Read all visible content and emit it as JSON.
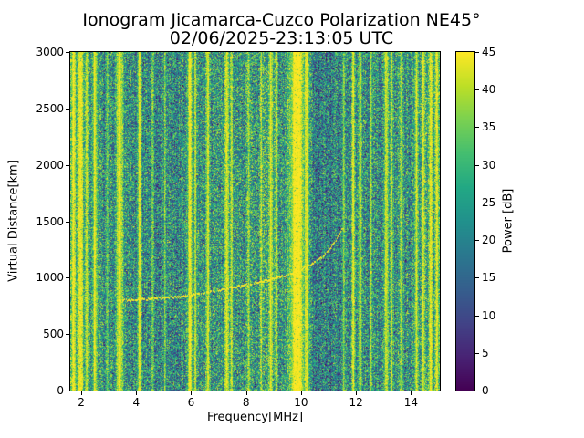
{
  "chart_data": {
    "type": "heatmap",
    "title": "Ionogram Jicamarca-Cuzco Polarization NE45°",
    "subtitle": "02/06/2025-23:13:05 UTC",
    "xlabel": "Frequency[MHz]",
    "ylabel": "Virtual Distance[km]",
    "xlim": [
      1.6,
      15.05
    ],
    "ylim": [
      0,
      3000
    ],
    "xticks": [
      2,
      4,
      6,
      8,
      10,
      12,
      14
    ],
    "yticks": [
      0,
      500,
      1000,
      1500,
      2000,
      2500,
      3000
    ],
    "colorbar": {
      "label": "Power [dB]",
      "min": 0,
      "max": 45,
      "ticks": [
        0,
        5,
        10,
        15,
        20,
        25,
        30,
        35,
        40,
        45
      ],
      "colormap": "viridis"
    },
    "background_power_db": {
      "mean": 23,
      "spread": 16
    },
    "background_fields": [
      {
        "freq": 8.3,
        "sigma": 1.3,
        "amp": 2.5
      },
      {
        "freq": 10.9,
        "sigma": 0.55,
        "amp": -4
      },
      {
        "freq": 4.9,
        "sigma": 0.8,
        "amp": -1.5
      },
      {
        "freq": 14.6,
        "sigma": 0.8,
        "amp": 2
      },
      {
        "freq": 1.9,
        "sigma": 0.4,
        "amp": 2
      }
    ],
    "rfi_stripes": [
      {
        "freq": 1.72,
        "sigma": 0.06,
        "power": 45
      },
      {
        "freq": 1.97,
        "sigma": 0.08,
        "power": 45
      },
      {
        "freq": 2.2,
        "sigma": 0.04,
        "power": 42
      },
      {
        "freq": 2.5,
        "sigma": 0.06,
        "power": 45
      },
      {
        "freq": 2.95,
        "sigma": 0.03,
        "power": 38
      },
      {
        "freq": 3.4,
        "sigma": 0.09,
        "power": 45
      },
      {
        "freq": 4.12,
        "sigma": 0.05,
        "power": 43
      },
      {
        "freq": 4.6,
        "sigma": 0.03,
        "power": 37
      },
      {
        "freq": 5.05,
        "sigma": 0.03,
        "power": 38
      },
      {
        "freq": 5.95,
        "sigma": 0.06,
        "power": 44
      },
      {
        "freq": 6.15,
        "sigma": 0.03,
        "power": 41
      },
      {
        "freq": 6.6,
        "sigma": 0.04,
        "power": 44
      },
      {
        "freq": 7.3,
        "sigma": 0.05,
        "power": 45
      },
      {
        "freq": 7.47,
        "sigma": 0.03,
        "power": 42
      },
      {
        "freq": 8.1,
        "sigma": 0.03,
        "power": 38
      },
      {
        "freq": 8.55,
        "sigma": 0.03,
        "power": 37
      },
      {
        "freq": 8.9,
        "sigma": 0.05,
        "power": 43
      },
      {
        "freq": 9.1,
        "sigma": 0.03,
        "power": 40
      },
      {
        "freq": 9.85,
        "sigma": 0.2,
        "power": 46
      },
      {
        "freq": 10.2,
        "sigma": 0.07,
        "power": 44
      },
      {
        "freq": 11.55,
        "sigma": 0.03,
        "power": 40
      },
      {
        "freq": 11.9,
        "sigma": 0.04,
        "power": 43
      },
      {
        "freq": 12.15,
        "sigma": 0.04,
        "power": 44
      },
      {
        "freq": 12.55,
        "sigma": 0.03,
        "power": 38
      },
      {
        "freq": 13.1,
        "sigma": 0.05,
        "power": 44
      },
      {
        "freq": 13.3,
        "sigma": 0.03,
        "power": 40
      },
      {
        "freq": 13.65,
        "sigma": 0.04,
        "power": 39
      },
      {
        "freq": 14.2,
        "sigma": 0.05,
        "power": 42
      },
      {
        "freq": 14.45,
        "sigma": 0.04,
        "power": 41
      },
      {
        "freq": 14.72,
        "sigma": 0.05,
        "power": 43
      },
      {
        "freq": 14.95,
        "sigma": 0.05,
        "power": 42
      }
    ],
    "traces": [
      {
        "name": "first-hop-echo",
        "power": 45,
        "thickness": 2,
        "density": 0.85,
        "points": [
          [
            3.35,
            795
          ],
          [
            4.0,
            805
          ],
          [
            4.8,
            815
          ],
          [
            5.6,
            830
          ],
          [
            6.4,
            860
          ],
          [
            7.2,
            895
          ],
          [
            8.0,
            935
          ],
          [
            8.8,
            975
          ],
          [
            9.4,
            1015
          ],
          [
            9.9,
            1060
          ],
          [
            10.4,
            1120
          ],
          [
            10.8,
            1190
          ],
          [
            11.1,
            1270
          ],
          [
            11.35,
            1360
          ],
          [
            11.5,
            1430
          ]
        ]
      },
      {
        "name": "second-hop-echo",
        "power": 36,
        "thickness": 1,
        "density": 0.45,
        "points": [
          [
            6.3,
            1470
          ],
          [
            6.9,
            1545
          ],
          [
            7.5,
            1625
          ],
          [
            8.1,
            1710
          ],
          [
            8.7,
            1800
          ],
          [
            9.2,
            1880
          ]
        ]
      }
    ]
  }
}
